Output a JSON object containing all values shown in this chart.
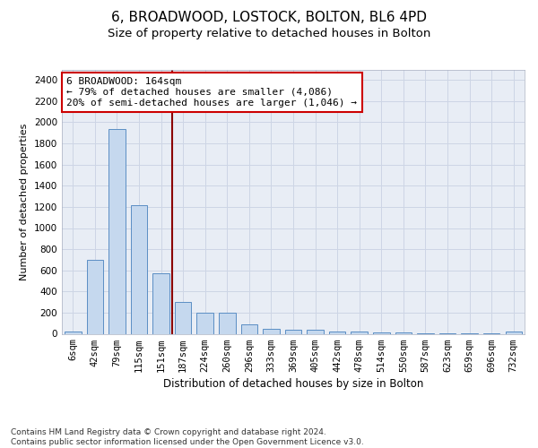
{
  "title": "6, BROADWOOD, LOSTOCK, BOLTON, BL6 4PD",
  "subtitle": "Size of property relative to detached houses in Bolton",
  "xlabel": "Distribution of detached houses by size in Bolton",
  "ylabel": "Number of detached properties",
  "bar_labels": [
    "6sqm",
    "42sqm",
    "79sqm",
    "115sqm",
    "151sqm",
    "187sqm",
    "224sqm",
    "260sqm",
    "296sqm",
    "333sqm",
    "369sqm",
    "405sqm",
    "442sqm",
    "478sqm",
    "514sqm",
    "550sqm",
    "587sqm",
    "623sqm",
    "659sqm",
    "696sqm",
    "732sqm"
  ],
  "bar_values": [
    20,
    700,
    1940,
    1220,
    570,
    300,
    200,
    200,
    85,
    45,
    35,
    35,
    25,
    25,
    15,
    15,
    5,
    5,
    5,
    5,
    20
  ],
  "bar_color": "#c5d8ee",
  "bar_edgecolor": "#5b8ec4",
  "bar_linewidth": 0.7,
  "bar_width": 0.75,
  "vline_x": 4.5,
  "vline_color": "#8b0000",
  "vline_linewidth": 1.5,
  "ylim": [
    0,
    2500
  ],
  "yticks": [
    0,
    200,
    400,
    600,
    800,
    1000,
    1200,
    1400,
    1600,
    1800,
    2000,
    2200,
    2400
  ],
  "grid_color": "#cdd5e5",
  "background_color": "#e8edf5",
  "annotation_text": "6 BROADWOOD: 164sqm\n← 79% of detached houses are smaller (4,086)\n20% of semi-detached houses are larger (1,046) →",
  "annotation_box_color": "#ffffff",
  "annotation_box_edgecolor": "#cc0000",
  "footer_text": "Contains HM Land Registry data © Crown copyright and database right 2024.\nContains public sector information licensed under the Open Government Licence v3.0.",
  "title_fontsize": 11,
  "subtitle_fontsize": 9.5,
  "ylabel_fontsize": 8,
  "xlabel_fontsize": 8.5,
  "tick_fontsize": 7.5,
  "annotation_fontsize": 8,
  "footer_fontsize": 6.5
}
